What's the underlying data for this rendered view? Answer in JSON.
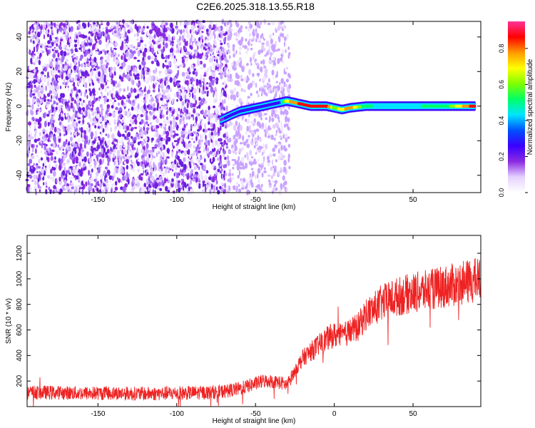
{
  "title": "C2E6.2025.318.13.55.R18",
  "chart_data": [
    {
      "type": "heatmap",
      "xlabel": "Height of straight line (km)",
      "ylabel": "Frequency (Hz)",
      "xlim": [
        -195,
        93
      ],
      "ylim": [
        -50,
        49
      ],
      "x_ticks": [
        -150,
        -100,
        -50,
        0,
        50
      ],
      "y_ticks": [
        -40,
        -20,
        0,
        20,
        40
      ],
      "colorbar": {
        "label": "Normalized spectral amplitude",
        "range": [
          0,
          0.95
        ],
        "ticks": [
          "0.0",
          "0.2",
          "0.4",
          "0.6",
          "0.8"
        ],
        "tick_values": [
          0.0,
          0.2,
          0.4,
          0.6,
          0.8
        ],
        "colors": [
          "#ffffff",
          "#e6d2ff",
          "#8a2be2",
          "#3a00ff",
          "#0050ff",
          "#00e5ff",
          "#00ff66",
          "#7fff00",
          "#ffff00",
          "#ff9900",
          "#ff0000",
          "#ff3399"
        ]
      },
      "regions": [
        {
          "x_range": [
            -195,
            -68
          ],
          "description_values": {
            "amplitude_level": 0.05
          }
        },
        {
          "x_range": [
            -68,
            -28
          ],
          "description_values": {
            "amplitude_level": 0.03
          }
        },
        {
          "x_range": [
            -28,
            93
          ],
          "description_values": {
            "amplitude_level": 0.0
          }
        }
      ],
      "ridge": {
        "x": [
          -72,
          -65,
          -60,
          -55,
          -50,
          -45,
          -40,
          -35,
          -30,
          -25,
          -20,
          -15,
          -10,
          -5,
          0,
          5,
          10,
          20,
          30,
          40,
          50,
          60,
          70,
          80,
          90
        ],
        "y": [
          -8,
          -5,
          -3,
          -2,
          -1,
          0,
          1,
          2,
          3,
          2,
          1,
          0,
          0,
          0,
          -1,
          -2,
          -1,
          0,
          0,
          0,
          0,
          0,
          0,
          0,
          0
        ],
        "amplitude": [
          0.2,
          0.25,
          0.25,
          0.3,
          0.3,
          0.25,
          0.3,
          0.3,
          0.7,
          0.8,
          0.85,
          0.9,
          0.9,
          0.85,
          0.6,
          0.7,
          0.8,
          0.5,
          0.45,
          0.45,
          0.45,
          0.5,
          0.5,
          0.7,
          0.9
        ]
      }
    },
    {
      "type": "line",
      "xlabel": "Height of straight line (km)",
      "ylabel": "SNR (10 * v/v)",
      "xlim": [
        -195,
        93
      ],
      "ylim": [
        0,
        1340
      ],
      "x_ticks": [
        -150,
        -100,
        -50,
        0,
        50
      ],
      "y_ticks": [
        200,
        400,
        600,
        800,
        1000,
        1200
      ],
      "color": "#ee2222",
      "series": [
        {
          "x": [
            -195,
            -180,
            -160,
            -140,
            -120,
            -100,
            -80,
            -70,
            -60,
            -55,
            -50,
            -45,
            -40,
            -35,
            -30,
            -25,
            -20,
            -15,
            -10,
            -5,
            0,
            5,
            10,
            15,
            20,
            25,
            30,
            40,
            50,
            60,
            70,
            80,
            90,
            93
          ],
          "y": [
            110,
            110,
            105,
            105,
            100,
            105,
            110,
            120,
            140,
            160,
            180,
            200,
            200,
            190,
            170,
            280,
            380,
            430,
            480,
            530,
            560,
            550,
            590,
            620,
            720,
            760,
            810,
            860,
            890,
            910,
            940,
            960,
            990,
            1000
          ]
        }
      ]
    }
  ]
}
